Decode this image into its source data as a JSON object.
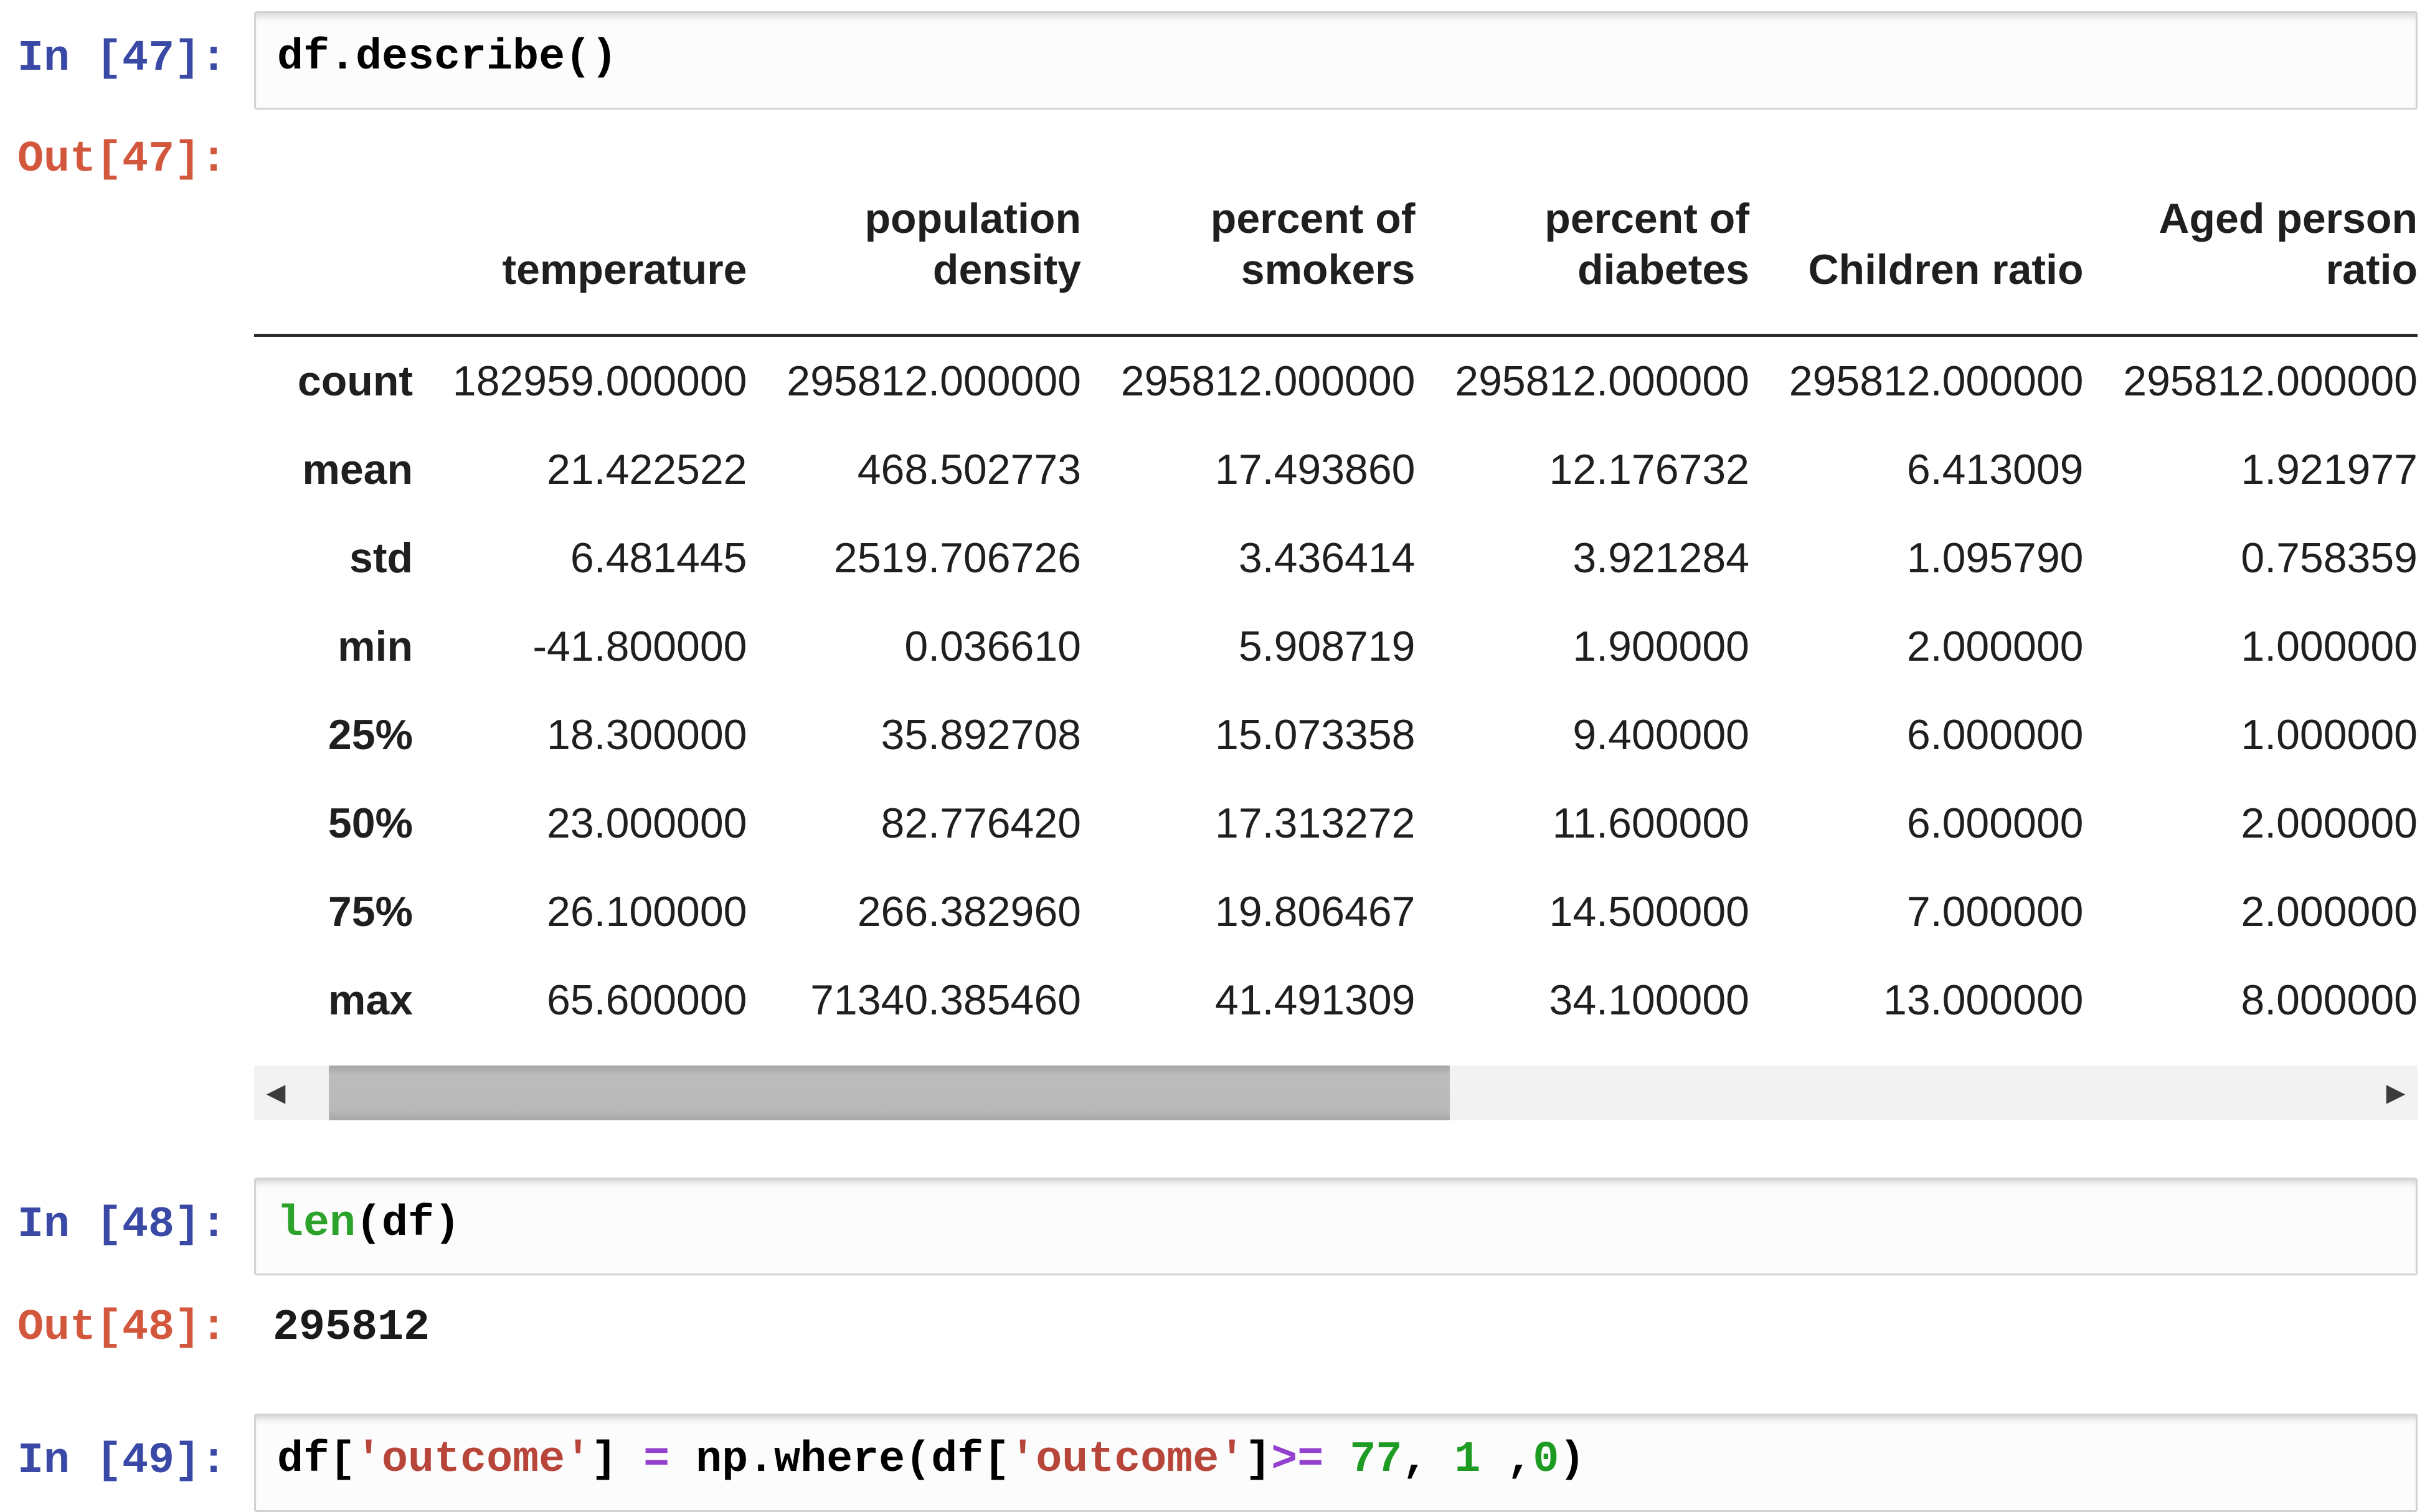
{
  "syntax_colors": {
    "plain": "#000000",
    "string": "#b8453a",
    "operator": "#9440cf",
    "number": "#1e9b22",
    "builtin": "#2ba32b",
    "in_prompt": "#3a49a5",
    "out_prompt": "#d2573d"
  },
  "cells": [
    {
      "prompt_in": "In [47]:",
      "code": [
        [
          "df.describe()",
          "plain"
        ]
      ],
      "output": {
        "prompt_out": "Out[47]:",
        "table": {
          "corner": "",
          "columns": [
            "temperature",
            "population\ndensity",
            "percent of\nsmokers",
            "percent of\ndiabetes",
            "Children ratio",
            "Aged person\nratio"
          ],
          "rows": [
            {
              "label": "count",
              "values": [
                "182959.000000",
                "295812.000000",
                "295812.000000",
                "295812.000000",
                "295812.000000",
                "295812.000000"
              ]
            },
            {
              "label": "mean",
              "values": [
                "21.422522",
                "468.502773",
                "17.493860",
                "12.176732",
                "6.413009",
                "1.921977"
              ]
            },
            {
              "label": "std",
              "values": [
                "6.481445",
                "2519.706726",
                "3.436414",
                "3.921284",
                "1.095790",
                "0.758359"
              ]
            },
            {
              "label": "min",
              "values": [
                "-41.800000",
                "0.036610",
                "5.908719",
                "1.900000",
                "2.000000",
                "1.000000"
              ]
            },
            {
              "label": "25%",
              "values": [
                "18.300000",
                "35.892708",
                "15.073358",
                "9.400000",
                "6.000000",
                "1.000000"
              ]
            },
            {
              "label": "50%",
              "values": [
                "23.000000",
                "82.776420",
                "17.313272",
                "11.600000",
                "6.000000",
                "2.000000"
              ]
            },
            {
              "label": "75%",
              "values": [
                "26.100000",
                "266.382960",
                "19.806467",
                "14.500000",
                "7.000000",
                "2.000000"
              ]
            },
            {
              "label": "max",
              "values": [
                "65.600000",
                "71340.385460",
                "41.491309",
                "34.100000",
                "13.000000",
                "8.000000"
              ]
            }
          ]
        },
        "scrollbar": {
          "left_arrow_glyph": "◀",
          "right_arrow_glyph": "▶",
          "thumb_left_pct": 1.5,
          "thumb_width_pct": 54
        }
      }
    },
    {
      "prompt_in": "In [48]:",
      "code": [
        [
          "len",
          "builtin"
        ],
        [
          "(df)",
          "plain"
        ]
      ],
      "output": {
        "prompt_out": "Out[48]:",
        "text": "295812"
      }
    },
    {
      "prompt_in": "In [49]:",
      "code": [
        [
          "df[",
          "plain"
        ],
        [
          "'outcome'",
          "string"
        ],
        [
          "] ",
          "plain"
        ],
        [
          "=",
          "operator"
        ],
        [
          " np.where(df[",
          "plain"
        ],
        [
          "'outcome'",
          "string"
        ],
        [
          "]",
          "plain"
        ],
        [
          ">=",
          "operator"
        ],
        [
          " ",
          "plain"
        ],
        [
          "77",
          "number"
        ],
        [
          ", ",
          "plain"
        ],
        [
          "1",
          "number"
        ],
        [
          " ,",
          "plain"
        ],
        [
          "0",
          "number"
        ],
        [
          ")",
          "plain"
        ]
      ],
      "output": null
    }
  ]
}
